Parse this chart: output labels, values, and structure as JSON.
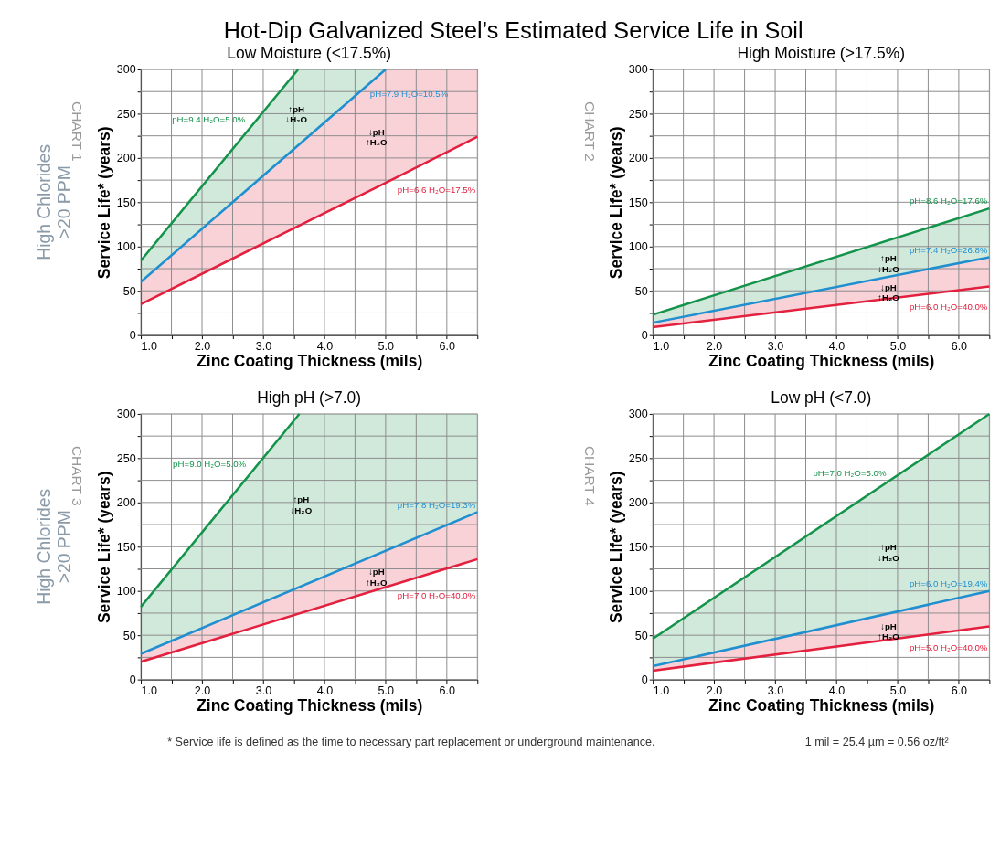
{
  "chart_data": [
    {
      "type": "line",
      "title": "Low Moisture (<17.5%)",
      "xlabel": "Zinc Coating Thickness (mils)",
      "ylabel": "Service Life* (years)",
      "xlim": [
        1.0,
        6.5
      ],
      "ylim": [
        0,
        300
      ],
      "xticks": [
        {
          "value": 1,
          "label": "1.0"
        },
        {
          "value": 1.5,
          "label": null
        },
        {
          "value": 2,
          "label": "2.0"
        },
        {
          "value": 2.5,
          "label": null
        },
        {
          "value": 3,
          "label": "3.0"
        },
        {
          "value": 3.5,
          "label": null
        },
        {
          "value": 4,
          "label": "4.0"
        },
        {
          "value": 4.5,
          "label": null
        },
        {
          "value": 5,
          "label": "5.0"
        },
        {
          "value": 5.5,
          "label": null
        },
        {
          "value": 6,
          "label": "6.0"
        },
        {
          "value": 6.5,
          "label": null
        }
      ],
      "yticks": [
        0,
        {
          "value": 25,
          "label": null
        },
        50,
        {
          "value": 75,
          "label": null
        },
        100,
        {
          "value": 125,
          "label": null
        },
        150,
        {
          "value": 175,
          "label": null
        },
        200,
        {
          "value": 225,
          "label": null
        },
        250,
        {
          "value": 275,
          "label": null
        },
        300
      ],
      "grid": true,
      "series": [
        {
          "name": "pH=9.4 H₂O=5.0%",
          "color": "#14934a",
          "x": [
            1,
            3.57,
            5
          ],
          "values": [
            84,
            300,
            null
          ],
          "upper": [
            84,
            300,
            300
          ],
          "lower": [
            60,
            214,
            300
          ]
        },
        {
          "name": "pH=7.9 H₂O=10.5%",
          "color": "#1f8fd0",
          "x": [
            1,
            5
          ],
          "values": [
            60,
            300
          ]
        },
        {
          "name": "pH=6.6 H₂O=17.5%",
          "color": "#e3203e",
          "x": [
            1,
            5,
            6.5
          ],
          "values": [
            35,
            172,
            224
          ],
          "upper": [
            60,
            300,
            300
          ],
          "lower": [
            35,
            172,
            224
          ]
        }
      ],
      "annotations": [
        "↑pH\n↓H₂O",
        "↓pH\n↑H₂O",
        "Hot-Dip Galvanized Steel’s Estimated Service Life in Soil",
        "High Chlorides\n>20 PPM",
        "CHART 1"
      ]
    },
    {
      "type": "line",
      "title": "High Moisture (>17.5%)",
      "xlabel": "Zinc Coating Thickness (mils)",
      "ylabel": "Service Life* (years)",
      "xlim": [
        1.0,
        6.5
      ],
      "ylim": [
        0,
        300
      ],
      "xticks": [
        {
          "value": 1,
          "label": "1.0"
        },
        {
          "value": 1.5,
          "label": null
        },
        {
          "value": 2,
          "label": "2.0"
        },
        {
          "value": 2.5,
          "label": null
        },
        {
          "value": 3,
          "label": "3.0"
        },
        {
          "value": 3.5,
          "label": null
        },
        {
          "value": 4,
          "label": "4.0"
        },
        {
          "value": 4.5,
          "label": null
        },
        {
          "value": 5,
          "label": "5.0"
        },
        {
          "value": 5.5,
          "label": null
        },
        {
          "value": 6,
          "label": "6.0"
        },
        {
          "value": 6.5,
          "label": null
        }
      ],
      "yticks": [
        0,
        {
          "value": 25,
          "label": null
        },
        50,
        {
          "value": 75,
          "label": null
        },
        100,
        {
          "value": 125,
          "label": null
        },
        150,
        {
          "value": 175,
          "label": null
        },
        200,
        {
          "value": 225,
          "label": null
        },
        250,
        {
          "value": 275,
          "label": null
        },
        300
      ],
      "grid": true,
      "series": [
        {
          "name": "pH=8.6 H₂O=17.6%",
          "color": "#14934a",
          "x": [
            1,
            6.5
          ],
          "values": [
            23,
            143
          ],
          "upper": [
            23,
            143
          ],
          "lower": [
            14,
            88
          ]
        },
        {
          "name": "pH=7.4 H₂O=26.8%",
          "color": "#1f8fd0",
          "x": [
            1,
            6.5
          ],
          "values": [
            14,
            88
          ]
        },
        {
          "name": "pH=6.0 H₂O=40.0%",
          "color": "#e3203e",
          "x": [
            1,
            6.5
          ],
          "values": [
            9,
            55
          ],
          "upper": [
            14,
            88
          ],
          "lower": [
            9,
            55
          ]
        }
      ],
      "annotations": [
        "↑pH\n↓H₂O",
        "↓pH\n↑H₂O",
        "CHART 2"
      ]
    },
    {
      "type": "line",
      "title": "High pH (>7.0)",
      "xlabel": "Zinc Coating Thickness (mils)",
      "ylabel": "Service Life* (years)",
      "xlim": [
        1.0,
        6.5
      ],
      "ylim": [
        0,
        300
      ],
      "xticks": [
        {
          "value": 1,
          "label": "1.0"
        },
        {
          "value": 1.5,
          "label": null
        },
        {
          "value": 2,
          "label": "2.0"
        },
        {
          "value": 2.5,
          "label": null
        },
        {
          "value": 3,
          "label": "3.0"
        },
        {
          "value": 3.5,
          "label": null
        },
        {
          "value": 4,
          "label": "4.0"
        },
        {
          "value": 4.5,
          "label": null
        },
        {
          "value": 5,
          "label": "5.0"
        },
        {
          "value": 5.5,
          "label": null
        },
        {
          "value": 6,
          "label": "6.0"
        },
        {
          "value": 6.5,
          "label": null
        }
      ],
      "yticks": [
        0,
        {
          "value": 25,
          "label": null
        },
        50,
        {
          "value": 75,
          "label": null
        },
        100,
        {
          "value": 125,
          "label": null
        },
        150,
        {
          "value": 175,
          "label": null
        },
        200,
        {
          "value": 225,
          "label": null
        },
        250,
        {
          "value": 275,
          "label": null
        },
        300
      ],
      "grid": true,
      "series": [
        {
          "name": "pH=9.0 H₂O=5.0%",
          "color": "#14934a",
          "x": [
            1,
            3.59,
            6.5
          ],
          "values": [
            82,
            300,
            null
          ],
          "upper": [
            82,
            300,
            300
          ],
          "lower": [
            29,
            104,
            189
          ]
        },
        {
          "name": "pH=7.8 H₂O=19.3%",
          "color": "#1f8fd0",
          "x": [
            1,
            6.5
          ],
          "values": [
            29,
            189
          ]
        },
        {
          "name": "pH=7.0 H₂O=40.0%",
          "color": "#e3203e",
          "x": [
            1,
            6.5
          ],
          "values": [
            20,
            136
          ],
          "upper": [
            29,
            189
          ],
          "lower": [
            20,
            136
          ]
        }
      ],
      "annotations": [
        "↑pH\n↓H₂O",
        "↓pH\n↑H₂O",
        "High Chlorides\n>20 PPM",
        "CHART 3",
        "* Service life is defined as the time to necessary part replacement or underground maintenance.",
        "1 mil = 25.4 µm = 0.56 oz/ft²"
      ]
    },
    {
      "type": "line",
      "title": "Low pH (<7.0)",
      "xlabel": "Zinc Coating Thickness (mils)",
      "ylabel": "Service Life* (years)",
      "xlim": [
        1.0,
        6.5
      ],
      "ylim": [
        0,
        300
      ],
      "xticks": [
        {
          "value": 1,
          "label": "1.0"
        },
        {
          "value": 1.5,
          "label": null
        },
        {
          "value": 2,
          "label": "2.0"
        },
        {
          "value": 2.5,
          "label": null
        },
        {
          "value": 3,
          "label": "3.0"
        },
        {
          "value": 3.5,
          "label": null
        },
        {
          "value": 4,
          "label": "4.0"
        },
        {
          "value": 4.5,
          "label": null
        },
        {
          "value": 5,
          "label": "5.0"
        },
        {
          "value": 5.5,
          "label": null
        },
        {
          "value": 6,
          "label": "6.0"
        },
        {
          "value": 6.5,
          "label": null
        }
      ],
      "yticks": [
        0,
        {
          "value": 25,
          "label": null
        },
        50,
        {
          "value": 75,
          "label": null
        },
        100,
        {
          "value": 125,
          "label": null
        },
        150,
        {
          "value": 175,
          "label": null
        },
        200,
        {
          "value": 225,
          "label": null
        },
        250,
        {
          "value": 275,
          "label": null
        },
        300
      ],
      "grid": true,
      "series": [
        {
          "name": "pH=7.0 H₂O=5.0%",
          "color": "#14934a",
          "x": [
            1,
            6.5
          ],
          "values": [
            46,
            300
          ],
          "upper": [
            46,
            300
          ],
          "lower": [
            15,
            100
          ]
        },
        {
          "name": "pH=6.0 H₂O=19.4%",
          "color": "#1f8fd0",
          "x": [
            1,
            6.5
          ],
          "values": [
            15,
            100
          ]
        },
        {
          "name": "pH=5.0 H₂O=40.0%",
          "color": "#e3203e",
          "x": [
            1,
            6.5
          ],
          "values": [
            10,
            60
          ],
          "upper": [
            15,
            100
          ],
          "lower": [
            10,
            60
          ]
        }
      ],
      "annotations": [
        "↑pH\n↓H₂O",
        "↓pH\n↑H₂O",
        "CHART 4"
      ]
    }
  ]
}
